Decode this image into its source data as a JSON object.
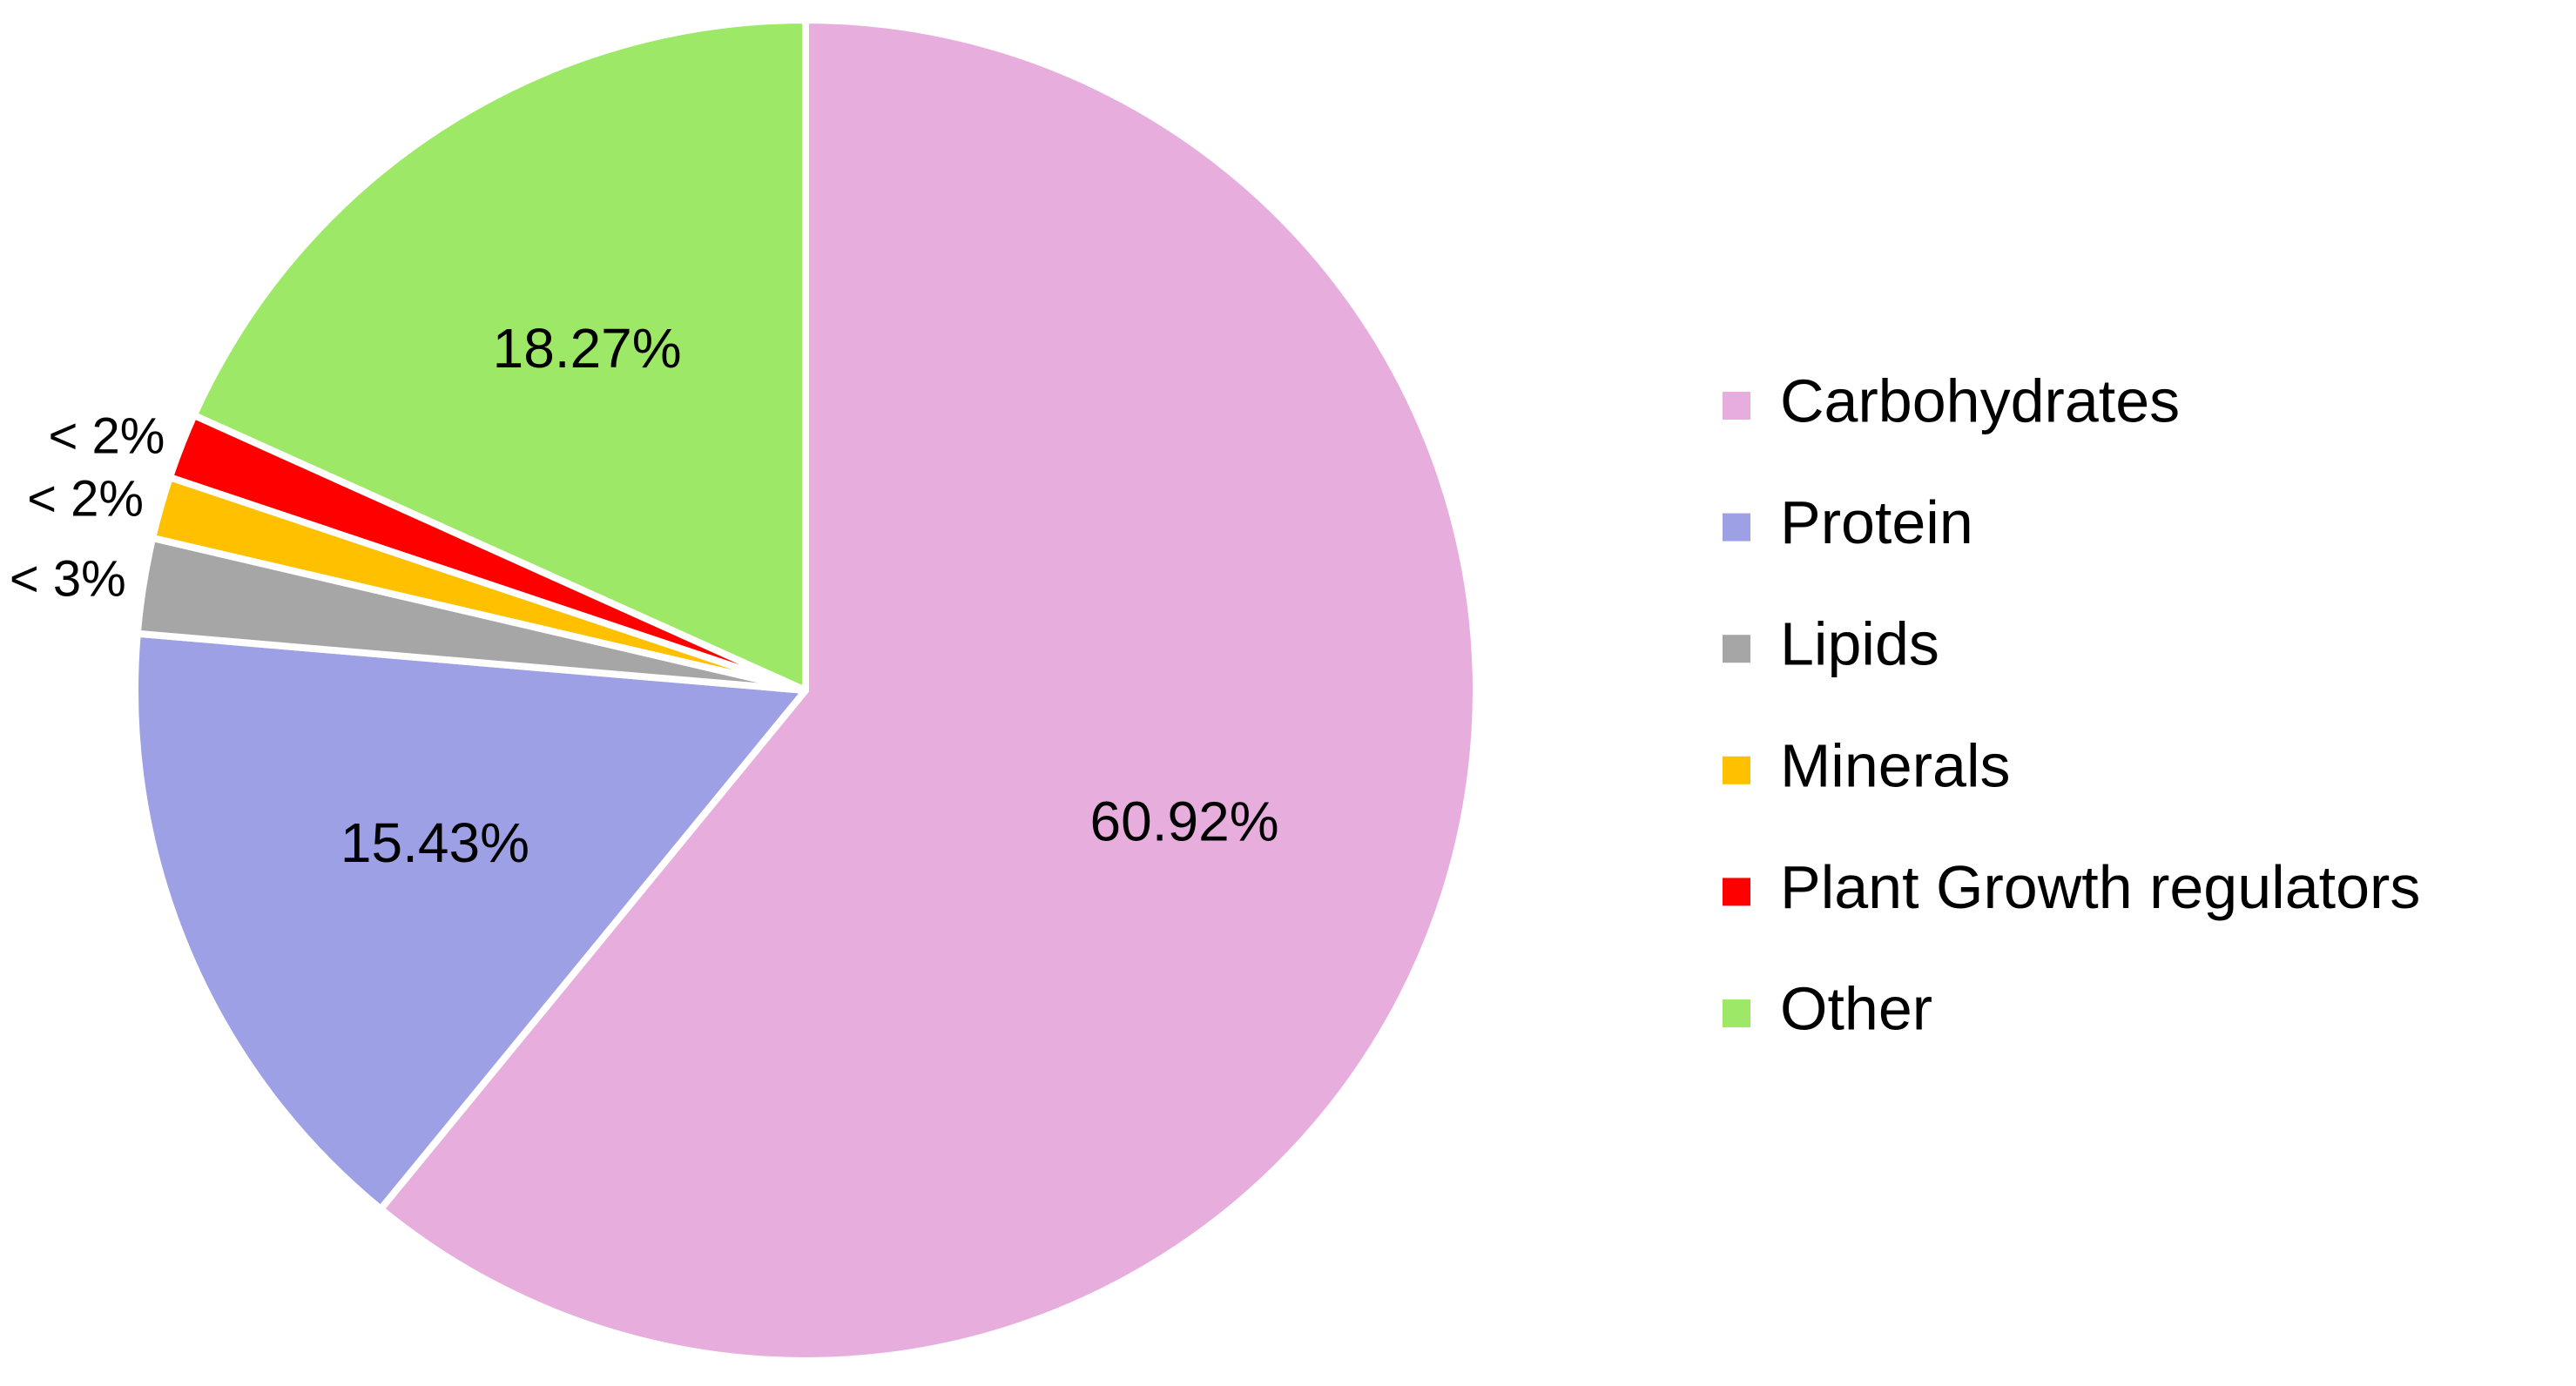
{
  "chart_data": {
    "type": "pie",
    "categories": [
      "Carbohydrates",
      "Protein",
      "Lipids",
      "Minerals",
      "Plant Growth regulators",
      "Other"
    ],
    "values": [
      60.92,
      15.43,
      2.3,
      1.5,
      1.58,
      18.27
    ],
    "value_labels": [
      "60.92%",
      "15.43%",
      "< 3%",
      "< 2%",
      "< 2%",
      "18.27%"
    ],
    "colors": [
      "#e7aedd",
      "#9da0e5",
      "#a6a6a6",
      "#ffc000",
      "#ff0000",
      "#9de866"
    ],
    "legend": "right"
  }
}
